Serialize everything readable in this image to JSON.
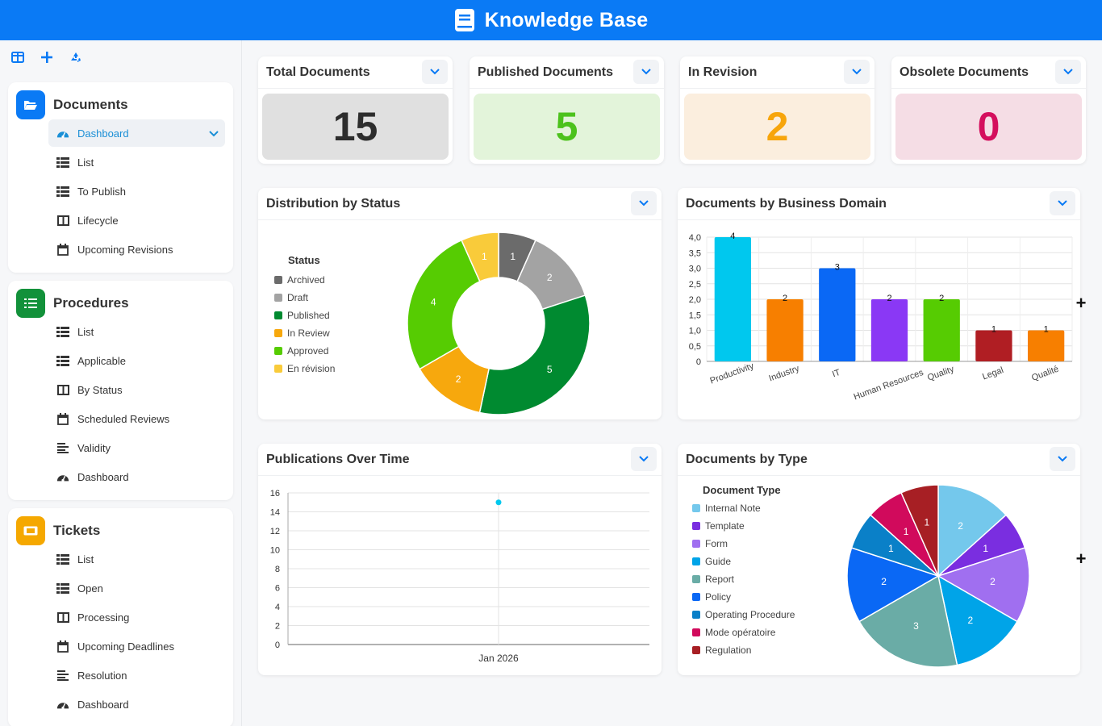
{
  "app": {
    "title": "Knowledge Base",
    "brand_color": "#0a7af5"
  },
  "toolbar": {
    "icons": [
      "panel-icon",
      "add-icon",
      "recycle-icon"
    ]
  },
  "sidebar": {
    "sections": [
      {
        "title": "Documents",
        "icon": "folder-open-icon",
        "color": "#0a7af5",
        "items": [
          {
            "label": "Dashboard",
            "icon": "gauge-icon",
            "active": true
          },
          {
            "label": "List",
            "icon": "list-icon"
          },
          {
            "label": "To Publish",
            "icon": "list-icon"
          },
          {
            "label": "Lifecycle",
            "icon": "book-icon"
          },
          {
            "label": "Upcoming Revisions",
            "icon": "calendar-icon"
          }
        ]
      },
      {
        "title": "Procedures",
        "icon": "list-check-icon",
        "color": "#12913a",
        "items": [
          {
            "label": "List",
            "icon": "list-icon"
          },
          {
            "label": "Applicable",
            "icon": "list-icon"
          },
          {
            "label": "By Status",
            "icon": "book-icon"
          },
          {
            "label": "Scheduled Reviews",
            "icon": "calendar-icon"
          },
          {
            "label": "Validity",
            "icon": "lines-icon"
          },
          {
            "label": "Dashboard",
            "icon": "gauge-icon"
          }
        ]
      },
      {
        "title": "Tickets",
        "icon": "ticket-icon",
        "color": "#f5a800",
        "items": [
          {
            "label": "List",
            "icon": "list-icon"
          },
          {
            "label": "Open",
            "icon": "list-icon"
          },
          {
            "label": "Processing",
            "icon": "book-icon"
          },
          {
            "label": "Upcoming Deadlines",
            "icon": "calendar-icon"
          },
          {
            "label": "Resolution",
            "icon": "lines-icon"
          },
          {
            "label": "Dashboard",
            "icon": "gauge-icon"
          }
        ]
      }
    ]
  },
  "stats": [
    {
      "title": "Total Documents",
      "value": "15",
      "bg": "#e0e0e0",
      "fg": "#2d2d2d"
    },
    {
      "title": "Published Documents",
      "value": "5",
      "bg": "#e3f4da",
      "fg": "#4cc21c"
    },
    {
      "title": "In Revision",
      "value": "2",
      "bg": "#fbeede",
      "fg": "#f7a50b"
    },
    {
      "title": "Obsolete Documents",
      "value": "0",
      "bg": "#f5dde5",
      "fg": "#d40f5d"
    }
  ],
  "cards": {
    "status": {
      "title": "Distribution by Status"
    },
    "domain": {
      "title": "Documents by Business Domain"
    },
    "time": {
      "title": "Publications Over Time"
    },
    "type": {
      "title": "Documents by Type"
    }
  },
  "chart_data": [
    {
      "id": "status",
      "type": "pie",
      "donut": true,
      "legend_title": "Status",
      "legend_position": "left",
      "slices": [
        {
          "label": "Archived",
          "value": 1,
          "color": "#6b6b6b"
        },
        {
          "label": "Draft",
          "value": 2,
          "color": "#a3a3a3"
        },
        {
          "label": "Published",
          "value": 5,
          "color": "#008a30"
        },
        {
          "label": "In Review",
          "value": 2,
          "color": "#f7a80d"
        },
        {
          "label": "Approved",
          "value": 4,
          "color": "#56cc02"
        },
        {
          "label": "En révision",
          "value": 1,
          "color": "#f9cb3a"
        }
      ]
    },
    {
      "id": "domain",
      "type": "bar",
      "grid": true,
      "categories": [
        "Productivity",
        "Industry",
        "IT",
        "Human Resources",
        "Quality",
        "Legal",
        "Qualité"
      ],
      "values": [
        4,
        2,
        3,
        2,
        2,
        1,
        1
      ],
      "colors": [
        "#00c8ee",
        "#f77f00",
        "#0a68f5",
        "#8a38f5",
        "#56cc02",
        "#b01e23",
        "#f77f00"
      ],
      "ylim": [
        0,
        4
      ],
      "yticks": [
        "0",
        "0,5",
        "1,0",
        "1,5",
        "2,0",
        "2,5",
        "3,0",
        "3,5",
        "4,0"
      ]
    },
    {
      "id": "time",
      "type": "scatter",
      "grid": true,
      "x": [
        "Jan 2026"
      ],
      "y": [
        15
      ],
      "ylim": [
        0,
        16
      ],
      "yticks": [
        "0",
        "2",
        "4",
        "6",
        "8",
        "10",
        "12",
        "14",
        "16"
      ],
      "color": "#00c8ee"
    },
    {
      "id": "type",
      "type": "pie",
      "legend_title": "Document Type",
      "legend_position": "left",
      "slices": [
        {
          "label": "Internal Note",
          "value": 2,
          "color": "#74c8ec"
        },
        {
          "label": "Template",
          "value": 1,
          "color": "#7a2ee0"
        },
        {
          "label": "Form",
          "value": 2,
          "color": "#a06ff0"
        },
        {
          "label": "Guide",
          "value": 2,
          "color": "#00a4e8"
        },
        {
          "label": "Report",
          "value": 3,
          "color": "#6aaca6"
        },
        {
          "label": "Policy",
          "value": 2,
          "color": "#0a68f5"
        },
        {
          "label": "Operating Procedure",
          "value": 1,
          "color": "#0a80c8"
        },
        {
          "label": "Mode opératoire",
          "value": 1,
          "color": "#d10a5c"
        },
        {
          "label": "Regulation",
          "value": 1,
          "color": "#a71f24"
        }
      ]
    }
  ]
}
